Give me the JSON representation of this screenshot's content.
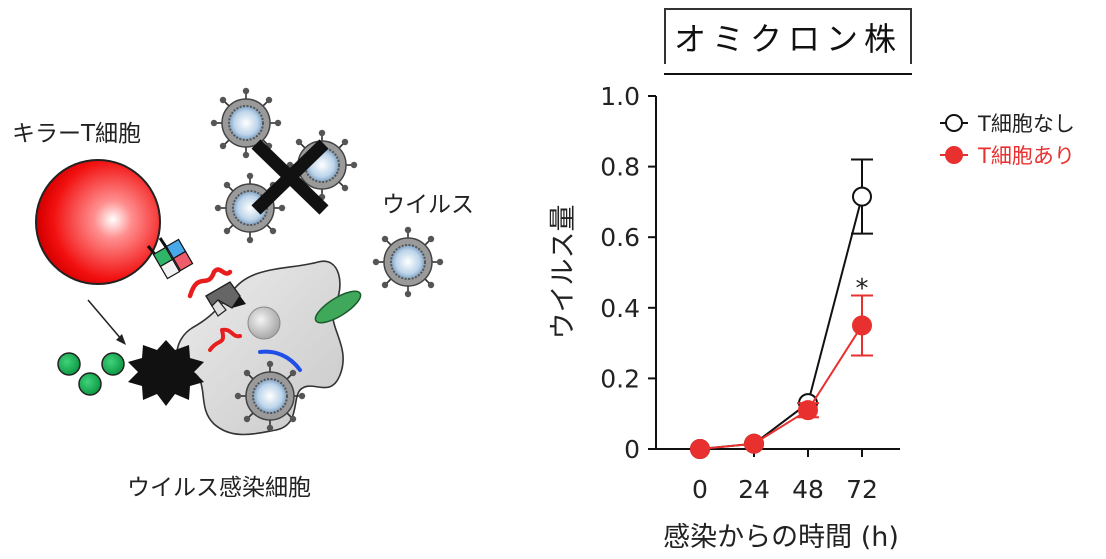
{
  "diagram": {
    "killer_t_cell_label": "キラーT細胞",
    "virus_label": "ウイルス",
    "infected_cell_label": "ウイルス感染細胞"
  },
  "chart_data": {
    "type": "line",
    "title": "オミクロン株",
    "xlabel": "感染からの時間 (h)",
    "ylabel": "ウイルス量",
    "x": [
      0,
      24,
      48,
      72
    ],
    "x_tick_labels": [
      "0",
      "24",
      "48",
      "72"
    ],
    "ylim": [
      0,
      1.0
    ],
    "y_ticks": [
      0,
      0.2,
      0.4,
      0.6,
      0.8,
      1.0
    ],
    "y_tick_labels": [
      "0",
      "0.2",
      "0.4",
      "0.6",
      "0.8",
      "1.0"
    ],
    "legend_position": "top-right",
    "series": [
      {
        "name": "T細胞なし",
        "values": [
          0,
          0.015,
          0.13,
          0.715
        ],
        "errors": [
          0,
          0,
          0,
          0.105
        ],
        "color": "#111111",
        "marker": "open-circle"
      },
      {
        "name": "T細胞あり",
        "values": [
          0,
          0.015,
          0.11,
          0.35
        ],
        "errors": [
          0,
          0,
          0.02,
          0.085
        ],
        "color": "#e8312f",
        "marker": "filled-circle"
      }
    ],
    "annotations": [
      {
        "text": "*",
        "x": 72
      }
    ]
  }
}
